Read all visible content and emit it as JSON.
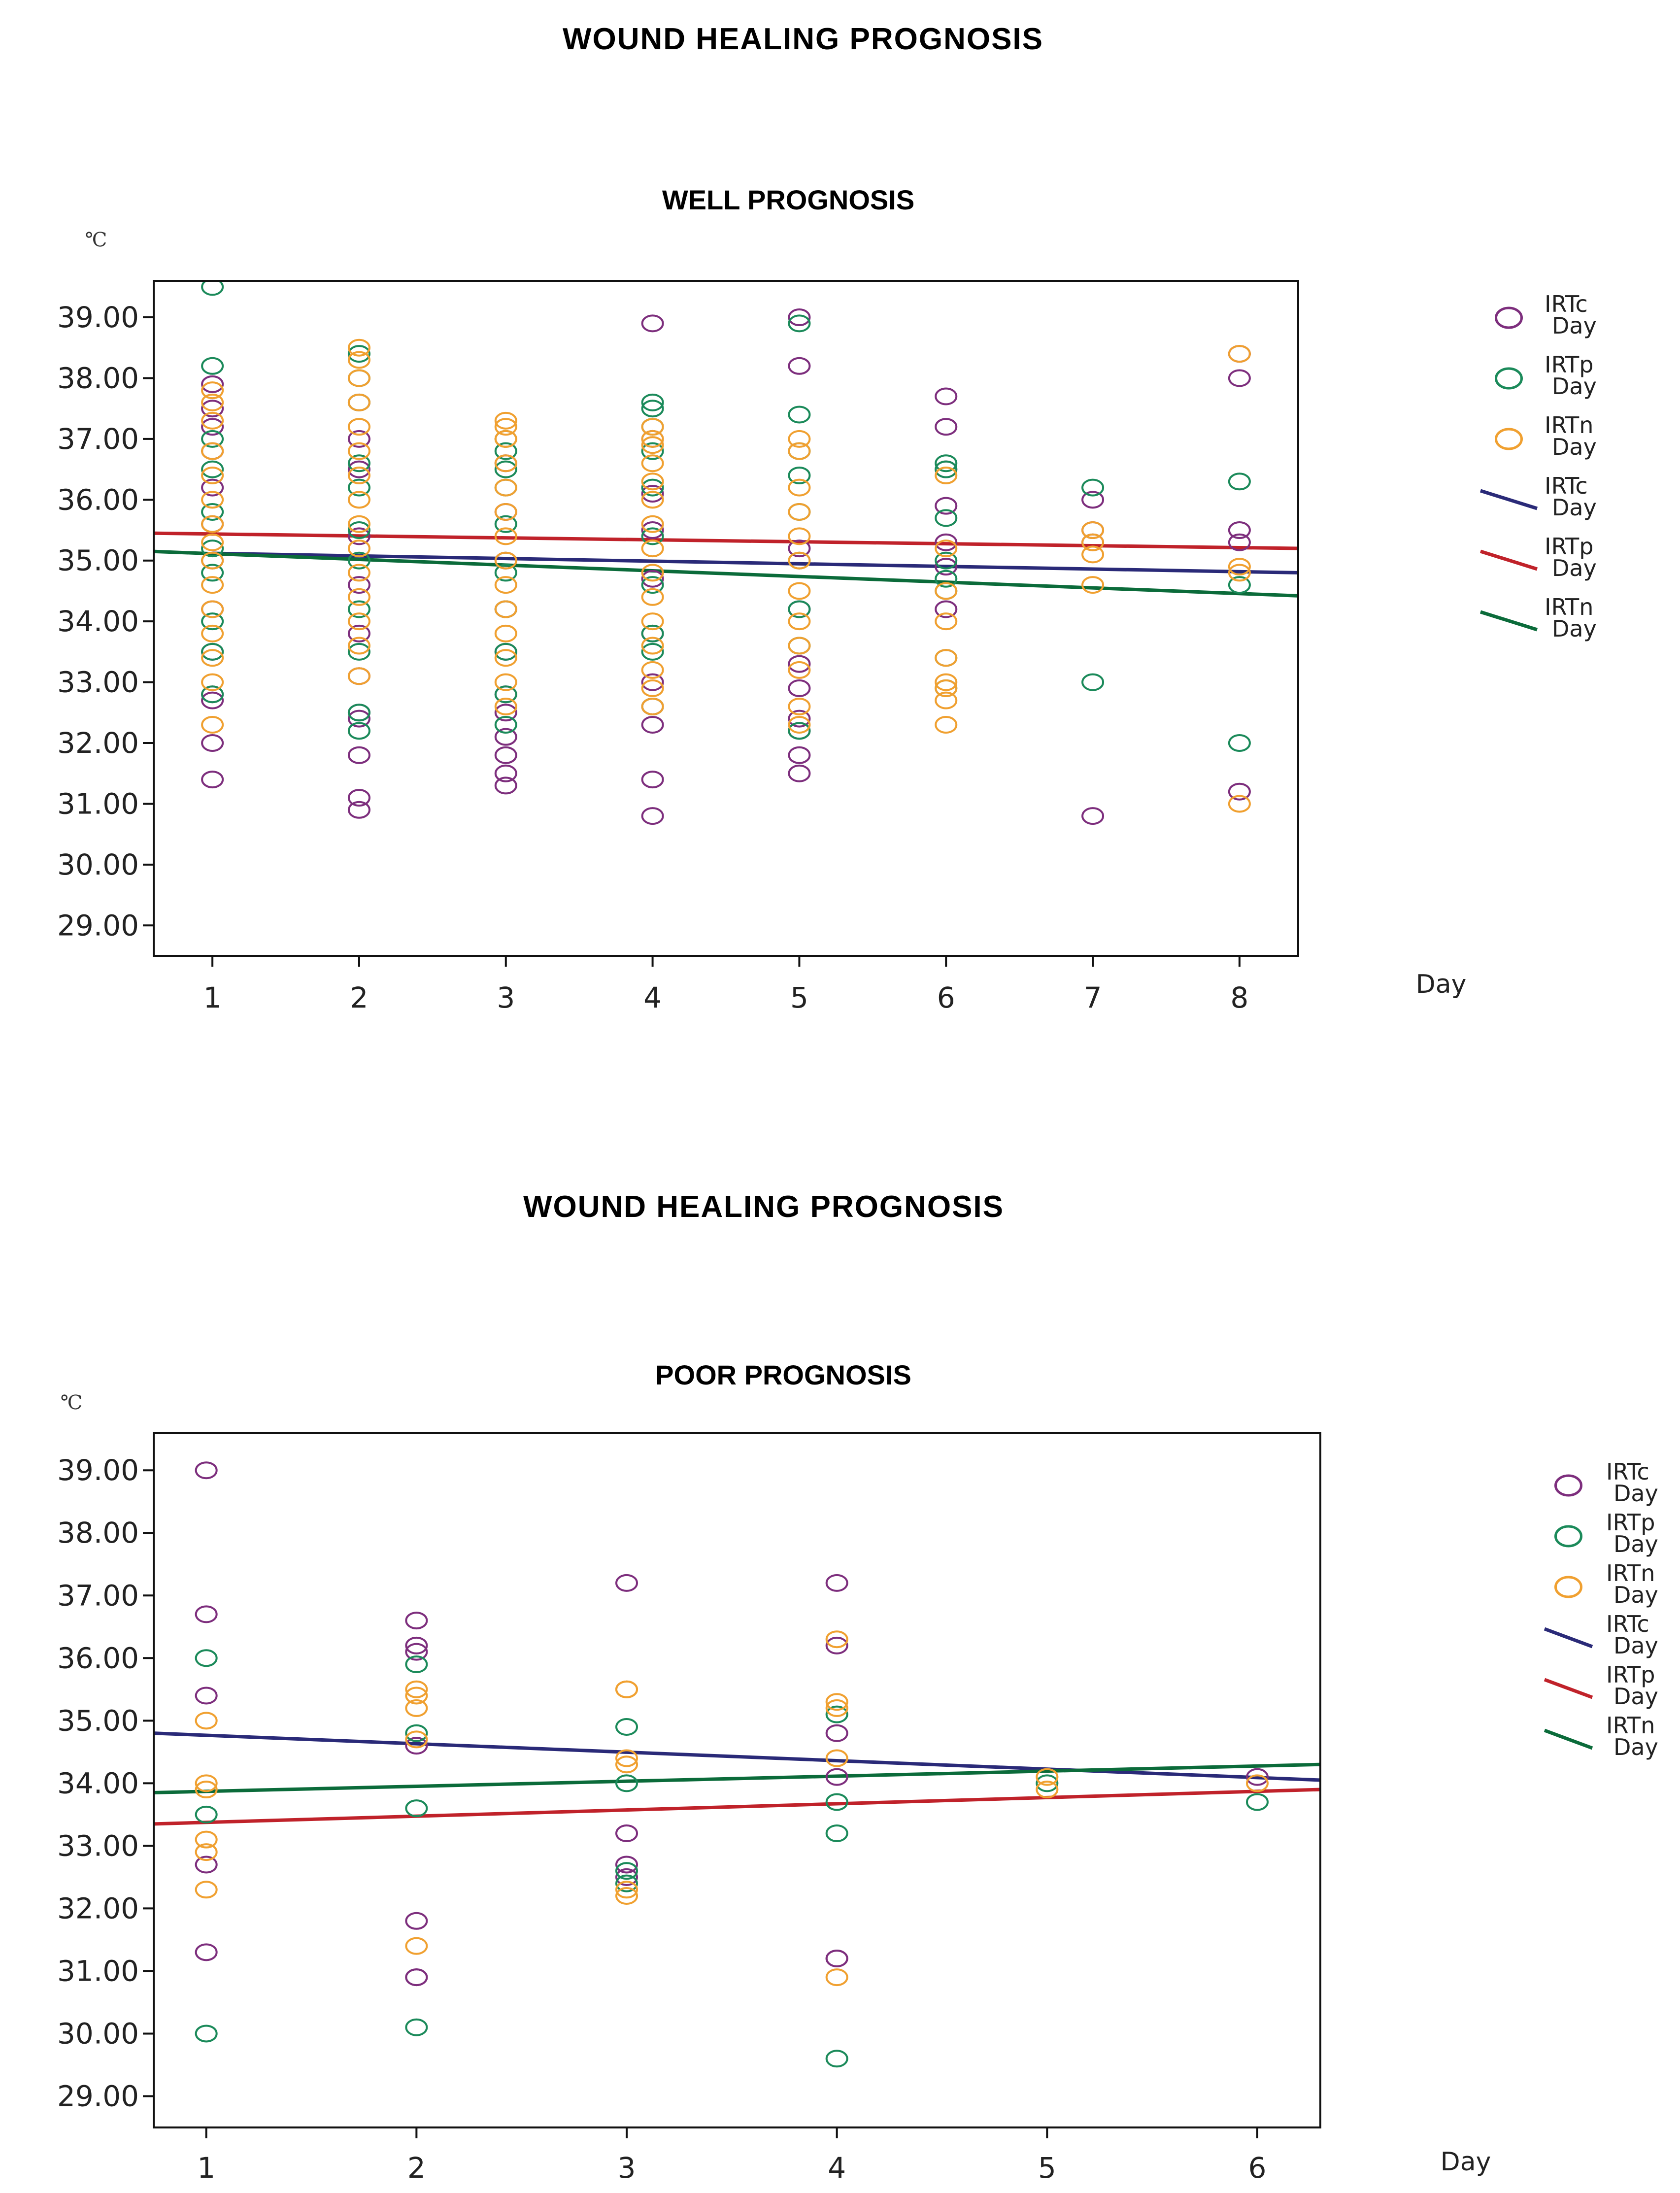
{
  "chart_data": [
    {
      "type": "scatter",
      "page_title": "WOUND HEALING PROGNOSIS",
      "title": "WELL PROGNOSIS",
      "xlabel": "Day",
      "ylabel": "℃",
      "xlim": [
        0.6,
        8.4
      ],
      "ylim": [
        28.5,
        39.6
      ],
      "x_ticks": [
        1,
        2,
        3,
        4,
        5,
        6,
        7,
        8
      ],
      "y_ticks": [
        29,
        30,
        31,
        32,
        33,
        34,
        35,
        36,
        37,
        38,
        39
      ],
      "y_tick_labels": [
        "29.00",
        "30.00",
        "31.00",
        "32.00",
        "33.00",
        "34.00",
        "35.00",
        "36.00",
        "37.00",
        "38.00",
        "39.00"
      ],
      "legend_position": "right",
      "series": [
        {
          "name": "IRTc",
          "sub": "Day",
          "kind": "points",
          "color": "#7d2e7d",
          "x": [
            1,
            1,
            1,
            1,
            1,
            1,
            1,
            1,
            1,
            1,
            1,
            1,
            1,
            2,
            2,
            2,
            2,
            2,
            2,
            2,
            2,
            2,
            2,
            2,
            2,
            3,
            3,
            3,
            3,
            3,
            3,
            3,
            3,
            3,
            3,
            3,
            4,
            4,
            4,
            4,
            4,
            4,
            4,
            4,
            4,
            4,
            4,
            5,
            5,
            5,
            5,
            5,
            5,
            5,
            5,
            5,
            5,
            6,
            6,
            6,
            6,
            6,
            6,
            6,
            7,
            7,
            7,
            7,
            8,
            8,
            8,
            8,
            8
          ],
          "y": [
            31.4,
            32.0,
            32.7,
            32.8,
            33.5,
            34.2,
            35.0,
            35.6,
            36.2,
            36.8,
            37.2,
            37.5,
            37.9,
            30.9,
            31.1,
            31.8,
            32.4,
            32.5,
            33.1,
            33.8,
            34.6,
            35.4,
            36.5,
            37.0,
            37.6,
            31.3,
            31.5,
            31.8,
            32.1,
            32.5,
            32.8,
            33.5,
            34.2,
            35.0,
            35.8,
            36.6,
            30.8,
            31.4,
            32.3,
            32.6,
            33.0,
            33.8,
            34.7,
            35.5,
            36.1,
            37.0,
            38.9,
            31.5,
            31.8,
            32.2,
            32.4,
            32.9,
            33.3,
            34.2,
            35.2,
            38.2,
            39.0,
            34.2,
            34.9,
            35.3,
            35.9,
            36.5,
            37.2,
            37.7,
            30.8,
            35.3,
            35.5,
            36.0,
            31.2,
            35.3,
            35.5,
            38.0,
            38.4
          ]
        },
        {
          "name": "IRTp",
          "sub": "Day",
          "kind": "points",
          "color": "#1b8a5a",
          "x": [
            1,
            1,
            1,
            1,
            1,
            1,
            1,
            1,
            1,
            1,
            2,
            2,
            2,
            2,
            2,
            2,
            2,
            2,
            2,
            2,
            2,
            3,
            3,
            3,
            3,
            3,
            3,
            3,
            3,
            3,
            3,
            4,
            4,
            4,
            4,
            4,
            4,
            4,
            4,
            4,
            4,
            5,
            5,
            5,
            5,
            5,
            5,
            5,
            5,
            5,
            6,
            6,
            6,
            6,
            6,
            6,
            6,
            6,
            7,
            7,
            8,
            8,
            8
          ],
          "y": [
            39.5,
            38.2,
            37.0,
            36.5,
            35.8,
            35.2,
            34.8,
            34.0,
            33.5,
            32.8,
            38.4,
            38.0,
            37.6,
            36.6,
            36.2,
            35.5,
            35.0,
            34.2,
            33.5,
            32.5,
            32.2,
            37.0,
            36.8,
            36.5,
            36.2,
            35.6,
            34.8,
            34.2,
            33.5,
            32.8,
            32.3,
            37.6,
            37.5,
            37.2,
            36.8,
            36.2,
            35.4,
            34.6,
            33.8,
            33.5,
            32.6,
            38.9,
            37.4,
            36.8,
            36.4,
            35.8,
            35.0,
            34.2,
            33.6,
            32.2,
            36.6,
            36.5,
            35.7,
            35.0,
            34.7,
            34.5,
            33.4,
            32.9,
            36.2,
            33.0,
            36.3,
            34.6,
            32.0
          ]
        },
        {
          "name": "IRTn",
          "sub": "Day",
          "kind": "points",
          "color": "#f0a030",
          "x": [
            1,
            1,
            1,
            1,
            1,
            1,
            1,
            1,
            1,
            1,
            1,
            1,
            1,
            1,
            1,
            2,
            2,
            2,
            2,
            2,
            2,
            2,
            2,
            2,
            2,
            2,
            2,
            2,
            2,
            2,
            3,
            3,
            3,
            3,
            3,
            3,
            3,
            3,
            3,
            3,
            3,
            3,
            3,
            3,
            3,
            4,
            4,
            4,
            4,
            4,
            4,
            4,
            4,
            4,
            4,
            4,
            4,
            4,
            4,
            4,
            5,
            5,
            5,
            5,
            5,
            5,
            5,
            5,
            5,
            5,
            5,
            5,
            6,
            6,
            6,
            6,
            6,
            6,
            6,
            6,
            6,
            7,
            7,
            7,
            7,
            8,
            8,
            8,
            8
          ],
          "y": [
            32.3,
            33.0,
            33.4,
            33.8,
            34.2,
            34.6,
            35.0,
            35.3,
            35.6,
            36.0,
            36.4,
            36.8,
            37.3,
            37.6,
            37.8,
            33.1,
            33.6,
            34.0,
            34.4,
            34.8,
            35.2,
            35.6,
            36.0,
            36.4,
            36.8,
            37.2,
            37.6,
            38.0,
            38.3,
            38.5,
            32.6,
            33.0,
            33.4,
            33.8,
            34.2,
            34.6,
            35.0,
            35.4,
            35.8,
            36.2,
            36.6,
            37.0,
            37.2,
            37.3,
            37.0,
            32.6,
            32.9,
            33.2,
            33.6,
            34.0,
            34.4,
            34.8,
            35.2,
            35.6,
            36.0,
            36.3,
            36.6,
            36.9,
            37.0,
            37.2,
            32.3,
            32.6,
            33.2,
            33.6,
            34.0,
            34.5,
            35.0,
            35.4,
            35.8,
            36.2,
            36.8,
            37.0,
            32.3,
            32.7,
            32.9,
            33.0,
            33.4,
            34.0,
            34.5,
            35.2,
            36.4,
            34.6,
            35.1,
            35.3,
            35.5,
            31.0,
            34.8,
            34.9,
            38.4
          ]
        },
        {
          "name": "IRTc",
          "sub": "Day",
          "kind": "fit",
          "color": "#2a2a78",
          "x": [
            1,
            8.4
          ],
          "y": [
            35.12,
            34.8
          ]
        },
        {
          "name": "IRTp",
          "sub": "Day",
          "kind": "fit",
          "color": "#c0222a",
          "x": [
            0.6,
            8.4
          ],
          "y": [
            35.45,
            35.2
          ]
        },
        {
          "name": "IRTn",
          "sub": "Day",
          "kind": "fit",
          "color": "#0b6b3a",
          "x": [
            0.6,
            8.4
          ],
          "y": [
            35.15,
            34.42
          ]
        }
      ]
    },
    {
      "type": "scatter",
      "page_title": "WOUND HEALING PROGNOSIS",
      "title": "POOR PROGNOSIS",
      "xlabel": "Day",
      "ylabel": "℃",
      "xlim": [
        0.75,
        6.3
      ],
      "ylim": [
        28.5,
        39.6
      ],
      "x_ticks": [
        1,
        2,
        3,
        4,
        5,
        6
      ],
      "y_ticks": [
        29,
        30,
        31,
        32,
        33,
        34,
        35,
        36,
        37,
        38,
        39
      ],
      "y_tick_labels": [
        "29.00",
        "30.00",
        "31.00",
        "32.00",
        "33.00",
        "34.00",
        "35.00",
        "36.00",
        "37.00",
        "38.00",
        "39.00"
      ],
      "legend_position": "right",
      "series": [
        {
          "name": "IRTc",
          "sub": "Day",
          "kind": "points",
          "color": "#7d2e7d",
          "x": [
            1,
            1,
            1,
            1,
            1,
            2,
            2,
            2,
            2,
            2,
            2,
            2,
            3,
            3,
            3,
            3,
            4,
            4,
            4,
            4,
            4,
            4,
            6
          ],
          "y": [
            39.0,
            36.7,
            35.4,
            32.7,
            31.3,
            36.6,
            36.2,
            36.1,
            34.6,
            31.8,
            30.9,
            30.9,
            37.2,
            33.2,
            32.7,
            32.5,
            37.2,
            36.2,
            34.8,
            34.1,
            31.2,
            31.2,
            34.1
          ]
        },
        {
          "name": "IRTp",
          "sub": "Day",
          "kind": "points",
          "color": "#1b8a5a",
          "x": [
            1,
            1,
            1,
            2,
            2,
            2,
            2,
            3,
            3,
            3,
            3,
            4,
            4,
            4,
            4,
            5,
            6
          ],
          "y": [
            36.0,
            33.5,
            30.0,
            35.9,
            34.8,
            33.6,
            30.1,
            34.9,
            34.0,
            32.6,
            32.4,
            35.1,
            33.7,
            33.2,
            29.6,
            34.0,
            33.7
          ]
        },
        {
          "name": "IRTn",
          "sub": "Day",
          "kind": "points",
          "color": "#f0a030",
          "x": [
            1,
            1,
            1,
            1,
            1,
            1,
            2,
            2,
            2,
            2,
            2,
            3,
            3,
            3,
            3,
            3,
            3,
            4,
            4,
            4,
            4,
            4,
            5,
            5,
            6
          ],
          "y": [
            35.0,
            34.0,
            33.9,
            33.1,
            32.9,
            32.3,
            35.5,
            35.4,
            35.2,
            31.4,
            34.7,
            35.5,
            35.5,
            34.4,
            34.3,
            32.3,
            32.2,
            36.3,
            35.3,
            35.2,
            34.4,
            30.9,
            34.1,
            33.9,
            34.0
          ]
        },
        {
          "name": "IRTc",
          "sub": "Day",
          "kind": "fit",
          "color": "#2a2a78",
          "x": [
            0.75,
            6.3
          ],
          "y": [
            34.8,
            34.05
          ]
        },
        {
          "name": "IRTp",
          "sub": "Day",
          "kind": "fit",
          "color": "#c0222a",
          "x": [
            0.75,
            6.3
          ],
          "y": [
            33.35,
            33.9
          ]
        },
        {
          "name": "IRTn",
          "sub": "Day",
          "kind": "fit",
          "color": "#0b6b3a",
          "x": [
            0.75,
            6.3
          ],
          "y": [
            33.85,
            34.3
          ]
        }
      ]
    }
  ]
}
